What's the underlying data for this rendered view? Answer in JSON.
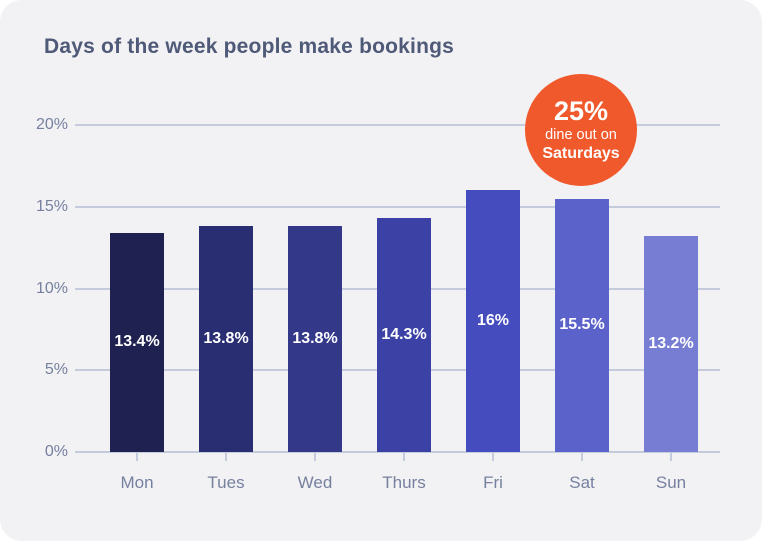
{
  "chart_data": {
    "type": "bar",
    "title": "Days of the week people make bookings",
    "categories": [
      "Mon",
      "Tues",
      "Wed",
      "Thurs",
      "Fri",
      "Sat",
      "Sun"
    ],
    "values": [
      13.4,
      13.8,
      13.8,
      14.3,
      16,
      15.5,
      13.2
    ],
    "value_labels": [
      "13.4%",
      "13.8%",
      "13.8%",
      "14.3%",
      "16%",
      "15.5%",
      "13.2%"
    ],
    "bar_colors": [
      "#1F2251",
      "#292D71",
      "#343889",
      "#3C42A5",
      "#444CBE",
      "#5B62CA",
      "#777DD3"
    ],
    "xlabel": "",
    "ylabel": "",
    "ylim": [
      0,
      20
    ],
    "yticks": [
      0,
      5,
      10,
      15,
      20
    ],
    "ytick_labels": [
      "0%",
      "5%",
      "10%",
      "15%",
      "20%"
    ],
    "grid": true,
    "legend": false
  },
  "annotation_badge": {
    "headline": "25%",
    "line2": "dine out on",
    "line3": "Saturdays",
    "background": "#F0592C",
    "text_color": "#FFFFFF"
  },
  "colors": {
    "card_background": "#F2F1F3",
    "title": "#4E5A78",
    "axis_label": "#7681A0",
    "gridline": "#C4CBDC",
    "bar_value_label": "#FFFFFF"
  }
}
